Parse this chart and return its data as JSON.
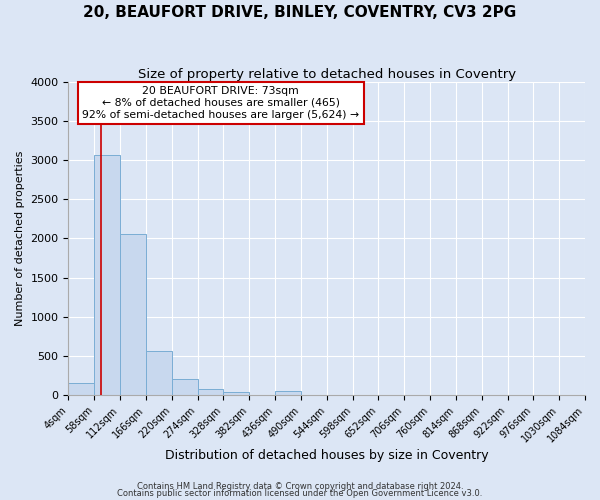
{
  "title": "20, BEAUFORT DRIVE, BINLEY, COVENTRY, CV3 2PG",
  "subtitle": "Size of property relative to detached houses in Coventry",
  "xlabel": "Distribution of detached houses by size in Coventry",
  "ylabel": "Number of detached properties",
  "bar_color": "#c8d8ee",
  "bar_edge_color": "#7aadd4",
  "background_color": "#dce6f5",
  "plot_bg_color": "#dce6f5",
  "grid_color": "#ffffff",
  "bin_edges": [
    4,
    58,
    112,
    166,
    220,
    274,
    328,
    382,
    436,
    490,
    544,
    598,
    652,
    706,
    760,
    814,
    868,
    922,
    976,
    1030,
    1084
  ],
  "bar_heights": [
    150,
    3070,
    2060,
    565,
    205,
    75,
    45,
    0,
    55,
    0,
    0,
    0,
    0,
    0,
    0,
    0,
    0,
    0,
    0,
    0
  ],
  "tick_labels": [
    "4sqm",
    "58sqm",
    "112sqm",
    "166sqm",
    "220sqm",
    "274sqm",
    "328sqm",
    "382sqm",
    "436sqm",
    "490sqm",
    "544sqm",
    "598sqm",
    "652sqm",
    "706sqm",
    "760sqm",
    "814sqm",
    "868sqm",
    "922sqm",
    "976sqm",
    "1030sqm",
    "1084sqm"
  ],
  "ylim": [
    0,
    4000
  ],
  "yticks": [
    0,
    500,
    1000,
    1500,
    2000,
    2500,
    3000,
    3500,
    4000
  ],
  "property_line_x": 73,
  "annotation_title": "20 BEAUFORT DRIVE: 73sqm",
  "annotation_line1": "← 8% of detached houses are smaller (465)",
  "annotation_line2": "92% of semi-detached houses are larger (5,624) →",
  "annotation_box_color": "#ffffff",
  "annotation_box_edge": "#cc0000",
  "line_color": "#cc0000",
  "footer1": "Contains HM Land Registry data © Crown copyright and database right 2024.",
  "footer2": "Contains public sector information licensed under the Open Government Licence v3.0."
}
